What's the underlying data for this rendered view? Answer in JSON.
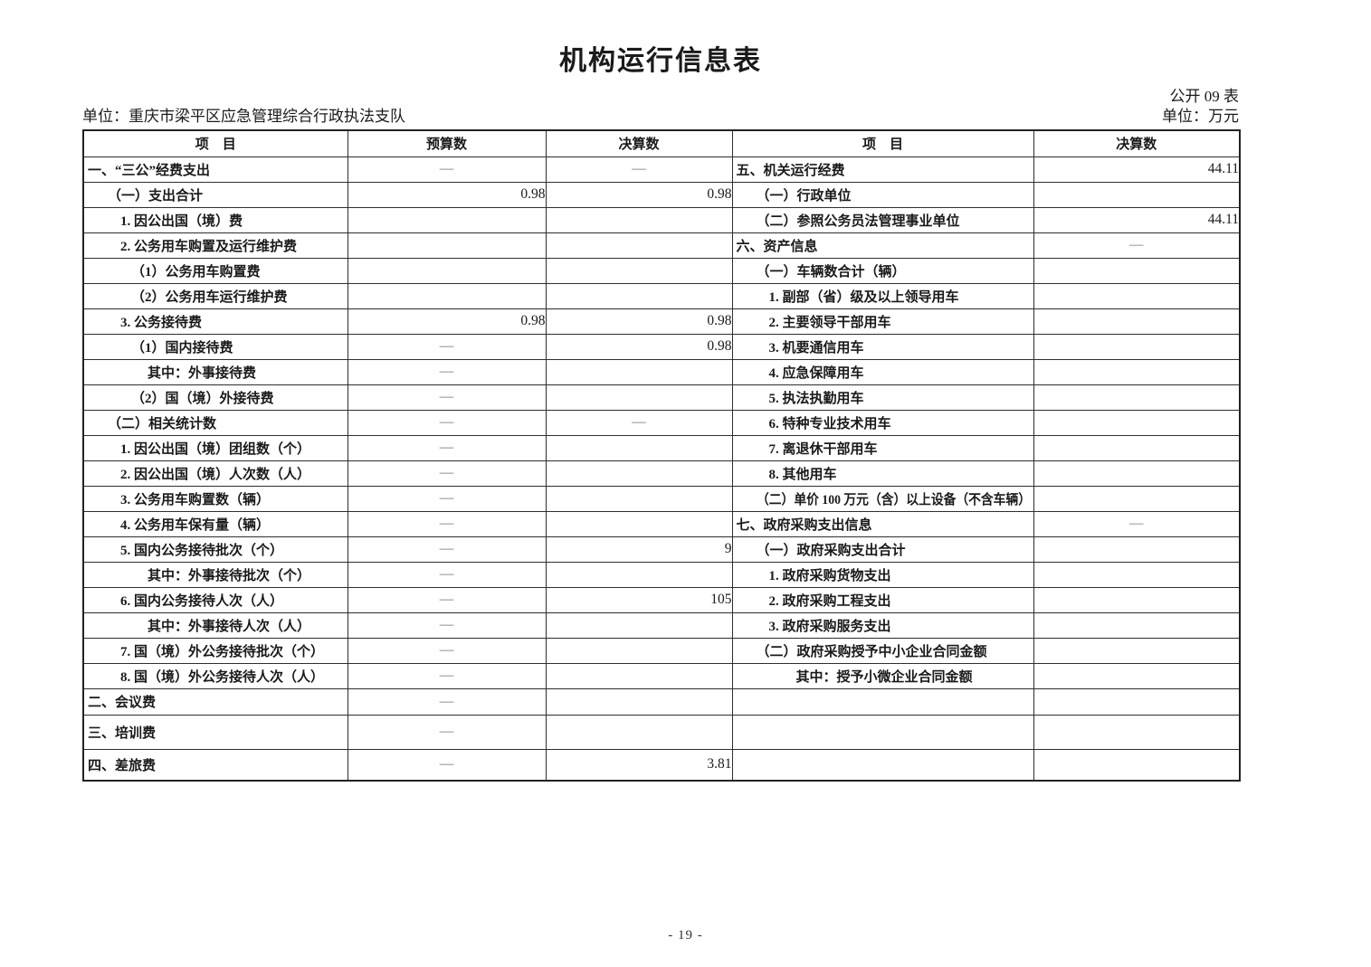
{
  "page": {
    "title": "机构运行信息表",
    "form_code": "公开 09 表",
    "unit_name": "单位：重庆市梁平区应急管理综合行政执法支队",
    "unit_money": "单位：万元",
    "page_number": "- 19 -"
  },
  "left_table": {
    "headers": [
      "项　目",
      "预算数",
      "决算数"
    ],
    "rows": [
      {
        "label": "一、“三公”经费支出",
        "indent": 0,
        "budget": "—",
        "final": "—"
      },
      {
        "label": "（一）支出合计",
        "indent": 1,
        "budget": "0.98",
        "final": "0.98"
      },
      {
        "label": "1. 因公出国（境）费",
        "indent": 2,
        "budget": "",
        "final": ""
      },
      {
        "label": "2. 公务用车购置及运行维护费",
        "indent": 2,
        "budget": "",
        "final": ""
      },
      {
        "label": "（1）公务用车购置费",
        "indent": 3,
        "budget": "",
        "final": ""
      },
      {
        "label": "（2）公务用车运行维护费",
        "indent": 3,
        "budget": "",
        "final": ""
      },
      {
        "label": "3. 公务接待费",
        "indent": 2,
        "budget": "0.98",
        "final": "0.98"
      },
      {
        "label": "（1）国内接待费",
        "indent": 3,
        "budget": "—",
        "final": "0.98"
      },
      {
        "label": "其中：外事接待费",
        "indent": 4,
        "budget": "—",
        "final": ""
      },
      {
        "label": "（2）国（境）外接待费",
        "indent": 3,
        "budget": "—",
        "final": ""
      },
      {
        "label": "（二）相关统计数",
        "indent": 1,
        "budget": "—",
        "final": "—"
      },
      {
        "label": "1. 因公出国（境）团组数（个）",
        "indent": 2,
        "budget": "—",
        "final": ""
      },
      {
        "label": "2. 因公出国（境）人次数（人）",
        "indent": 2,
        "budget": "—",
        "final": ""
      },
      {
        "label": "3. 公务用车购置数（辆）",
        "indent": 2,
        "budget": "—",
        "final": ""
      },
      {
        "label": "4. 公务用车保有量（辆）",
        "indent": 2,
        "budget": "—",
        "final": ""
      },
      {
        "label": "5. 国内公务接待批次（个）",
        "indent": 2,
        "budget": "—",
        "final": "9"
      },
      {
        "label": "其中：外事接待批次（个）",
        "indent": 4,
        "budget": "—",
        "final": ""
      },
      {
        "label": "6. 国内公务接待人次（人）",
        "indent": 2,
        "budget": "—",
        "final": "105"
      },
      {
        "label": "其中：外事接待人次（人）",
        "indent": 4,
        "budget": "—",
        "final": ""
      },
      {
        "label": "7. 国（境）外公务接待批次（个）",
        "indent": 2,
        "budget": "—",
        "final": ""
      },
      {
        "label": "8. 国（境）外公务接待人次（人）",
        "indent": 2,
        "budget": "—",
        "final": ""
      },
      {
        "label": "二、会议费",
        "indent": 0,
        "budget": "—",
        "final": ""
      },
      {
        "label": "三、培训费",
        "indent": 0,
        "budget": "—",
        "final": ""
      },
      {
        "label": "四、差旅费",
        "indent": 0,
        "budget": "—",
        "final": "3.81"
      }
    ]
  },
  "right_table": {
    "headers": [
      "项　目",
      "决算数"
    ],
    "rows": [
      {
        "label": "五、机关运行经费",
        "indent": 0,
        "final": "44.11"
      },
      {
        "label": "（一）行政单位",
        "indent": 1,
        "final": ""
      },
      {
        "label": "（二）参照公务员法管理事业单位",
        "indent": 1,
        "final": "44.11"
      },
      {
        "label": "六、资产信息",
        "indent": 0,
        "final": "—"
      },
      {
        "label": "（一）车辆数合计（辆）",
        "indent": 1,
        "final": ""
      },
      {
        "label": "1. 副部（省）级及以上领导用车",
        "indent": 2,
        "final": ""
      },
      {
        "label": "2. 主要领导干部用车",
        "indent": 2,
        "final": ""
      },
      {
        "label": "3. 机要通信用车",
        "indent": 2,
        "final": ""
      },
      {
        "label": "4. 应急保障用车",
        "indent": 2,
        "final": ""
      },
      {
        "label": "5. 执法执勤用车",
        "indent": 2,
        "final": ""
      },
      {
        "label": "6. 特种专业技术用车",
        "indent": 2,
        "final": ""
      },
      {
        "label": "7. 离退休干部用车",
        "indent": 2,
        "final": ""
      },
      {
        "label": "8. 其他用车",
        "indent": 2,
        "final": ""
      },
      {
        "label": "（二）单价 100 万元（含）以上设备（不含车辆）",
        "indent": 1,
        "final": ""
      },
      {
        "label": "七、政府采购支出信息",
        "indent": 0,
        "final": "—"
      },
      {
        "label": "（一）政府采购支出合计",
        "indent": 1,
        "final": ""
      },
      {
        "label": "1. 政府采购货物支出",
        "indent": 2,
        "final": ""
      },
      {
        "label": "2. 政府采购工程支出",
        "indent": 2,
        "final": ""
      },
      {
        "label": "3. 政府采购服务支出",
        "indent": 2,
        "final": ""
      },
      {
        "label": "（二）政府采购授予中小企业合同金额",
        "indent": 1,
        "final": ""
      },
      {
        "label": "其中：授予小微企业合同金额",
        "indent": 4,
        "final": ""
      },
      {
        "label": "",
        "indent": 0,
        "final": ""
      },
      {
        "label": "",
        "indent": 0,
        "final": ""
      },
      {
        "label": "",
        "indent": 0,
        "final": ""
      }
    ]
  }
}
